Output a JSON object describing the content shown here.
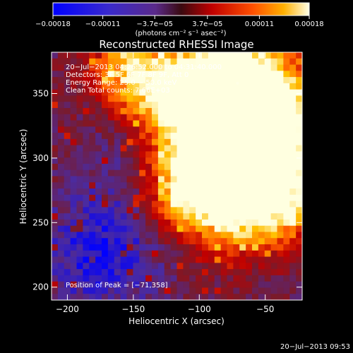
{
  "chart_data": {
    "type": "heatmap",
    "title": "Reconstructed RHESSI Image",
    "xlabel": "Heliocentric X (arcsec)",
    "ylabel": "Heliocentric Y (arcsec)",
    "xlim": [
      -212,
      -22
    ],
    "ylim": [
      190,
      382
    ],
    "xticks": [
      -200,
      -150,
      -100,
      -50
    ],
    "yticks": [
      200,
      250,
      300,
      350
    ],
    "x_tick_labels": [
      "−200",
      "−150",
      "−100",
      "−50"
    ],
    "y_tick_labels": [
      "200",
      "250",
      "300",
      "350"
    ],
    "colorbar": {
      "ticks": [
        -0.00018,
        -0.00011,
        -3.7e-05,
        3.7e-05,
        0.00011,
        0.00018
      ],
      "tick_labels": [
        "−0.00018",
        "−0.00011",
        "−3.7e−05",
        "3.7e−05",
        "0.00011",
        "0.00018"
      ],
      "unit_label": "(photons cm⁻² s⁻¹ asec⁻²)",
      "colors": [
        "#0000ff",
        "#4b2b9f",
        "#7a1a2a",
        "#c00000",
        "#ff5a00",
        "#ffc000",
        "#ffffe0"
      ]
    },
    "annotations": [
      "20−Jul−2013 04:26:52.000 to 04:31:40.000",
      "Detectors: 3F 5F 6F 7F 8F 9F, Att 0",
      "Energy Range: 25.0 − 50.0 keV",
      "Clean    Total counts: 7.66E+03"
    ],
    "peak_label": "Position of Peak = [−71,358]",
    "peak_position": [
      -71,
      358
    ],
    "timestamp": "20−Jul−2013 09:53"
  }
}
